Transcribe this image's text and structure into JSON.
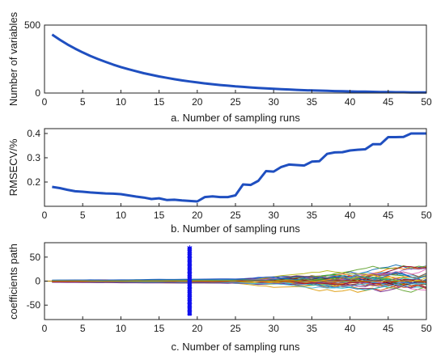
{
  "chart_data": [
    {
      "type": "line",
      "xlabel": "a. Number of sampling runs",
      "ylabel": "Number of variables",
      "xlim": [
        0,
        50
      ],
      "ylim": [
        0,
        500
      ],
      "xticks": [
        0,
        5,
        10,
        15,
        20,
        25,
        30,
        35,
        40,
        45,
        50
      ],
      "yticks": [
        0,
        500
      ],
      "color": "#1f4fc0",
      "x": [
        1,
        2,
        3,
        4,
        5,
        6,
        7,
        8,
        9,
        10,
        11,
        12,
        13,
        14,
        15,
        16,
        17,
        18,
        19,
        20,
        21,
        22,
        23,
        24,
        25,
        26,
        27,
        28,
        29,
        30,
        31,
        32,
        33,
        34,
        35,
        36,
        37,
        38,
        39,
        40,
        41,
        42,
        43,
        44,
        45,
        46,
        47,
        48,
        49,
        50
      ],
      "y": [
        430,
        392,
        358,
        327,
        299,
        273,
        250,
        229,
        209,
        191,
        175,
        160,
        146,
        134,
        122,
        112,
        102,
        93,
        85,
        78,
        71,
        65,
        59,
        54,
        49,
        45,
        41,
        37,
        34,
        31,
        28,
        26,
        23,
        21,
        19,
        18,
        16,
        14,
        13,
        12,
        11,
        10,
        9,
        8,
        7,
        6,
        6,
        5,
        5,
        5
      ]
    },
    {
      "type": "line",
      "xlabel": "b. Number of sampling runs",
      "ylabel": "RMSECV/%",
      "xlim": [
        0,
        50
      ],
      "ylim": [
        0.1,
        0.42
      ],
      "xticks": [
        0,
        5,
        10,
        15,
        20,
        25,
        30,
        35,
        40,
        45,
        50
      ],
      "yticks": [
        0.2,
        0.3,
        0.4
      ],
      "color": "#1f4fc0",
      "x": [
        1,
        2,
        3,
        4,
        5,
        6,
        7,
        8,
        9,
        10,
        11,
        12,
        13,
        14,
        15,
        16,
        17,
        18,
        19,
        20,
        21,
        22,
        23,
        24,
        25,
        26,
        27,
        28,
        29,
        30,
        31,
        32,
        33,
        34,
        35,
        36,
        37,
        38,
        39,
        40,
        41,
        42,
        43,
        44,
        45,
        46,
        47,
        48,
        49,
        50
      ],
      "y": [
        0.18,
        0.175,
        0.168,
        0.162,
        0.16,
        0.157,
        0.155,
        0.153,
        0.152,
        0.15,
        0.145,
        0.14,
        0.136,
        0.13,
        0.133,
        0.126,
        0.127,
        0.124,
        0.122,
        0.12,
        0.138,
        0.141,
        0.138,
        0.138,
        0.145,
        0.19,
        0.188,
        0.205,
        0.245,
        0.243,
        0.262,
        0.272,
        0.27,
        0.268,
        0.284,
        0.286,
        0.316,
        0.322,
        0.323,
        0.33,
        0.333,
        0.335,
        0.356,
        0.356,
        0.385,
        0.385,
        0.386,
        0.4,
        0.4,
        0.4
      ]
    },
    {
      "type": "line",
      "xlabel": "c. Number of sampling runs",
      "ylabel": "coefficients path",
      "xlim": [
        0,
        50
      ],
      "ylim": [
        -80,
        80
      ],
      "xticks": [
        0,
        5,
        10,
        15,
        20,
        25,
        30,
        35,
        40,
        45,
        50
      ],
      "yticks": [
        -50,
        0,
        50
      ],
      "marker_x": 19,
      "marker_color": "#1010ee",
      "palette": [
        "#1f4fc0",
        "#d4541a",
        "#e0a21c",
        "#7b2f8e",
        "#6aa83a",
        "#4fb8e0",
        "#a2142f",
        "#1f77b4",
        "#ff7f0e",
        "#2ca02c",
        "#8c564b",
        "#9467bd",
        "#bcbd22",
        "#17becf",
        "#e377c2",
        "#7f0000"
      ]
    }
  ]
}
